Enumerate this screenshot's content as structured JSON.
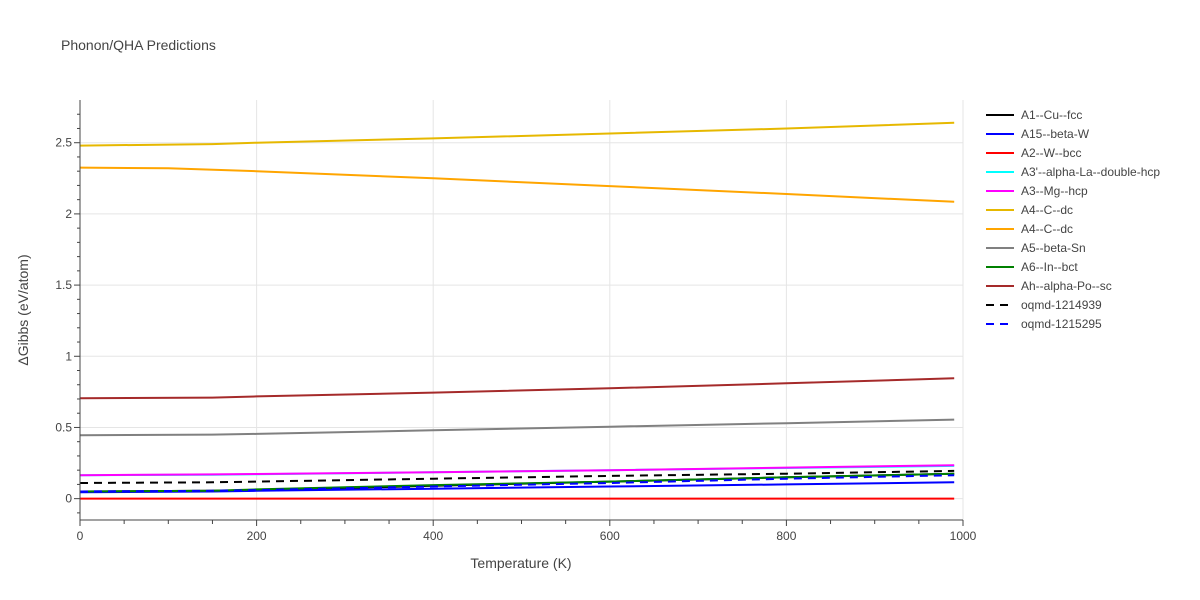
{
  "chart_data": {
    "type": "line",
    "title": "Phonon/QHA Predictions",
    "xlabel": "Temperature (K)",
    "ylabel": "ΔGibbs (eV/atom)",
    "xlim": [
      0,
      1000
    ],
    "ylim": [
      -0.15,
      2.8
    ],
    "x_ticks": [
      0,
      200,
      400,
      600,
      800,
      1000
    ],
    "x_tick_labels": [
      "0",
      "200",
      "400",
      "600",
      "800",
      "1000"
    ],
    "y_ticks": [
      0,
      0.5,
      1,
      1.5,
      2,
      2.5
    ],
    "y_tick_labels": [
      "0",
      "0.5",
      "1",
      "1.5",
      "2",
      "2.5"
    ],
    "grid": true,
    "legend_position": "right",
    "series": [
      {
        "name": "A1--Cu--fcc",
        "color": "#000000",
        "dash": "solid",
        "x": [
          0,
          150,
          200,
          400,
          600,
          800,
          990
        ],
        "y": [
          0.05,
          0.055,
          0.06,
          0.09,
          0.12,
          0.15,
          0.175
        ]
      },
      {
        "name": "A15--beta-W",
        "color": "#0000ff",
        "dash": "solid",
        "x": [
          0,
          150,
          200,
          400,
          600,
          800,
          990
        ],
        "y": [
          0.045,
          0.05,
          0.055,
          0.07,
          0.085,
          0.1,
          0.115
        ]
      },
      {
        "name": "A2--W--bcc",
        "color": "#ff0000",
        "dash": "solid",
        "x": [
          0,
          200,
          400,
          600,
          800,
          990
        ],
        "y": [
          0,
          0,
          0,
          0,
          0,
          0
        ]
      },
      {
        "name": "A3'--alpha-La--double-hcp",
        "color": "#00ffff",
        "dash": "solid",
        "x": [
          0,
          150,
          200,
          400,
          600,
          800,
          990
        ],
        "y": [
          0.165,
          0.168,
          0.172,
          0.185,
          0.2,
          0.215,
          0.23
        ]
      },
      {
        "name": "A3--Mg--hcp",
        "color": "#ff00ff",
        "dash": "solid",
        "x": [
          0,
          150,
          200,
          400,
          600,
          800,
          990
        ],
        "y": [
          0.165,
          0.17,
          0.173,
          0.185,
          0.2,
          0.218,
          0.235
        ]
      },
      {
        "name": "A4--C--dc",
        "color": "#e6b800",
        "dash": "solid",
        "x": [
          0,
          150,
          200,
          400,
          600,
          800,
          990
        ],
        "y": [
          2.48,
          2.49,
          2.5,
          2.53,
          2.565,
          2.6,
          2.64
        ]
      },
      {
        "name": "A4--C--dc",
        "color": "#ffa500",
        "dash": "solid",
        "x": [
          0,
          100,
          200,
          400,
          600,
          800,
          990
        ],
        "y": [
          2.325,
          2.32,
          2.3,
          2.25,
          2.195,
          2.14,
          2.085
        ]
      },
      {
        "name": "A5--beta-Sn",
        "color": "#808080",
        "dash": "solid",
        "x": [
          0,
          150,
          200,
          400,
          600,
          800,
          990
        ],
        "y": [
          0.445,
          0.45,
          0.455,
          0.48,
          0.505,
          0.53,
          0.555
        ]
      },
      {
        "name": "A6--In--bct",
        "color": "#008000",
        "dash": "solid",
        "x": [
          0,
          150,
          200,
          400,
          600,
          800,
          990
        ],
        "y": [
          0.05,
          0.055,
          0.065,
          0.095,
          0.12,
          0.15,
          0.175
        ]
      },
      {
        "name": "Ah--alpha-Po--sc",
        "color": "#a52a2a",
        "dash": "solid",
        "x": [
          0,
          150,
          200,
          400,
          600,
          800,
          990
        ],
        "y": [
          0.705,
          0.71,
          0.718,
          0.745,
          0.775,
          0.81,
          0.845
        ]
      },
      {
        "name": "oqmd-1214939",
        "color": "#000000",
        "dash": "dash",
        "x": [
          0,
          150,
          200,
          400,
          600,
          800,
          990
        ],
        "y": [
          0.11,
          0.115,
          0.12,
          0.14,
          0.16,
          0.175,
          0.195
        ]
      },
      {
        "name": "oqmd-1215295",
        "color": "#0000ff",
        "dash": "dash",
        "x": [
          0,
          150,
          200,
          400,
          600,
          800,
          990
        ],
        "y": [
          0.05,
          0.055,
          0.06,
          0.085,
          0.11,
          0.14,
          0.165
        ]
      }
    ]
  }
}
